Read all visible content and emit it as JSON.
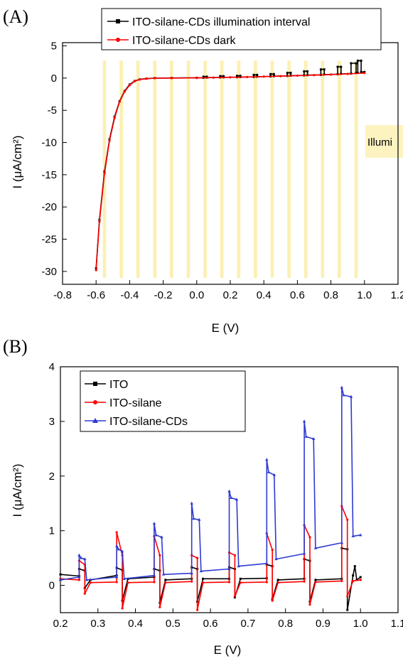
{
  "panels": {
    "a": {
      "tag": "(A)"
    },
    "b": {
      "tag": "(B)"
    }
  },
  "chart_data": [
    {
      "type": "line",
      "xlabel": "E (V)",
      "ylabel": "I (μA/cm²)",
      "xlim": [
        -0.8,
        1.2
      ],
      "ylim": [
        -32,
        5.5
      ],
      "xticks": [
        -0.8,
        -0.6,
        -0.4,
        -0.2,
        0.0,
        0.2,
        0.4,
        0.6,
        0.8,
        1.0,
        1.2
      ],
      "xtick_labels": [
        "-0.8",
        "-0.6",
        "-0.4",
        "-0.2",
        "0.0",
        "0.2",
        "0.4",
        "0.6",
        "0.8",
        "1.0",
        "1.2"
      ],
      "yticks": [
        5,
        0,
        -5,
        -10,
        -15,
        -20,
        -25,
        -30
      ],
      "ytick_labels": [
        "5",
        "0",
        "-5",
        "-10",
        "-15",
        "-20",
        "-25",
        "-30"
      ],
      "grid": false,
      "legend_position": "top",
      "annotation": "Illumi",
      "illumination_intervals": [
        [
          -0.56,
          -0.54
        ],
        [
          -0.46,
          -0.44
        ],
        [
          -0.36,
          -0.34
        ],
        [
          -0.26,
          -0.24
        ],
        [
          -0.16,
          -0.14
        ],
        [
          -0.06,
          -0.04
        ],
        [
          0.04,
          0.06
        ],
        [
          0.14,
          0.16
        ],
        [
          0.24,
          0.26
        ],
        [
          0.34,
          0.36
        ],
        [
          0.44,
          0.46
        ],
        [
          0.54,
          0.56
        ],
        [
          0.64,
          0.66
        ],
        [
          0.74,
          0.76
        ],
        [
          0.84,
          0.86
        ],
        [
          0.94,
          0.96
        ]
      ],
      "series": [
        {
          "name": "ITO-silane-CDs illumination interval",
          "color": "#000000",
          "marker": "square",
          "points": [
            [
              -0.6,
              -29.5
            ],
            [
              -0.58,
              -22.0
            ],
            [
              -0.55,
              -14.5
            ],
            [
              -0.52,
              -9.5
            ],
            [
              -0.49,
              -6.0
            ],
            [
              -0.46,
              -3.6
            ],
            [
              -0.43,
              -2.0
            ],
            [
              -0.4,
              -1.0
            ],
            [
              -0.37,
              -0.45
            ],
            [
              -0.34,
              -0.2
            ],
            [
              -0.3,
              -0.08
            ],
            [
              -0.25,
              0.0
            ],
            [
              -0.15,
              0.02
            ],
            [
              0.0,
              0.05
            ],
            [
              0.04,
              0.05
            ],
            [
              0.04,
              0.22
            ],
            [
              0.06,
              0.22
            ],
            [
              0.06,
              0.08
            ],
            [
              0.14,
              0.1
            ],
            [
              0.14,
              0.3
            ],
            [
              0.16,
              0.3
            ],
            [
              0.16,
              0.12
            ],
            [
              0.24,
              0.14
            ],
            [
              0.24,
              0.35
            ],
            [
              0.26,
              0.35
            ],
            [
              0.26,
              0.16
            ],
            [
              0.34,
              0.18
            ],
            [
              0.34,
              0.5
            ],
            [
              0.36,
              0.5
            ],
            [
              0.36,
              0.22
            ],
            [
              0.44,
              0.26
            ],
            [
              0.44,
              0.62
            ],
            [
              0.46,
              0.62
            ],
            [
              0.46,
              0.3
            ],
            [
              0.54,
              0.34
            ],
            [
              0.54,
              0.82
            ],
            [
              0.56,
              0.82
            ],
            [
              0.56,
              0.38
            ],
            [
              0.64,
              0.42
            ],
            [
              0.64,
              1.05
            ],
            [
              0.66,
              1.05
            ],
            [
              0.66,
              0.46
            ],
            [
              0.74,
              0.5
            ],
            [
              0.74,
              1.35
            ],
            [
              0.76,
              1.35
            ],
            [
              0.76,
              0.55
            ],
            [
              0.84,
              0.6
            ],
            [
              0.84,
              1.75
            ],
            [
              0.86,
              1.75
            ],
            [
              0.86,
              0.65
            ],
            [
              0.92,
              0.7
            ],
            [
              0.92,
              2.3
            ],
            [
              0.95,
              2.3
            ],
            [
              0.95,
              0.8
            ],
            [
              0.96,
              0.8
            ],
            [
              0.96,
              2.7
            ],
            [
              0.98,
              2.7
            ],
            [
              0.98,
              0.95
            ],
            [
              1.0,
              0.95
            ]
          ]
        },
        {
          "name": "ITO-silane-CDs dark",
          "color": "#ff0000",
          "marker": "circle",
          "points": [
            [
              -0.6,
              -29.8
            ],
            [
              -0.58,
              -22.3
            ],
            [
              -0.55,
              -14.8
            ],
            [
              -0.52,
              -9.7
            ],
            [
              -0.49,
              -6.2
            ],
            [
              -0.46,
              -3.7
            ],
            [
              -0.43,
              -2.1
            ],
            [
              -0.4,
              -1.1
            ],
            [
              -0.37,
              -0.5
            ],
            [
              -0.34,
              -0.22
            ],
            [
              -0.3,
              -0.1
            ],
            [
              -0.25,
              -0.02
            ],
            [
              -0.15,
              0.0
            ],
            [
              0.0,
              0.03
            ],
            [
              0.1,
              0.07
            ],
            [
              0.2,
              0.12
            ],
            [
              0.3,
              0.17
            ],
            [
              0.4,
              0.23
            ],
            [
              0.5,
              0.3
            ],
            [
              0.6,
              0.38
            ],
            [
              0.7,
              0.46
            ],
            [
              0.8,
              0.55
            ],
            [
              0.9,
              0.65
            ],
            [
              1.0,
              0.78
            ]
          ]
        }
      ]
    },
    {
      "type": "line",
      "xlabel": "E (V)",
      "ylabel": "I (μA/cm²)",
      "xlim": [
        0.2,
        1.1
      ],
      "ylim": [
        -0.5,
        4.0
      ],
      "xticks": [
        0.2,
        0.3,
        0.4,
        0.5,
        0.6,
        0.7,
        0.8,
        0.9,
        1.0,
        1.1
      ],
      "xtick_labels": [
        "0.2",
        "0.3",
        "0.4",
        "0.5",
        "0.6",
        "0.7",
        "0.8",
        "0.9",
        "1.0",
        "1.1"
      ],
      "yticks": [
        0,
        1,
        2,
        3,
        4
      ],
      "ytick_labels": [
        "0",
        "1",
        "2",
        "3",
        "4"
      ],
      "grid": false,
      "legend_position": "top-left",
      "series": [
        {
          "name": "ITO",
          "color": "#000000",
          "marker": "square",
          "points": [
            [
              0.2,
              0.2
            ],
            [
              0.25,
              0.17
            ],
            [
              0.25,
              0.3
            ],
            [
              0.265,
              0.27
            ],
            [
              0.265,
              -0.05
            ],
            [
              0.28,
              0.1
            ],
            [
              0.35,
              0.18
            ],
            [
              0.35,
              0.32
            ],
            [
              0.365,
              0.28
            ],
            [
              0.365,
              -0.28
            ],
            [
              0.38,
              0.12
            ],
            [
              0.45,
              0.15
            ],
            [
              0.45,
              0.3
            ],
            [
              0.465,
              0.27
            ],
            [
              0.465,
              -0.32
            ],
            [
              0.48,
              0.1
            ],
            [
              0.55,
              0.12
            ],
            [
              0.55,
              0.33
            ],
            [
              0.565,
              0.3
            ],
            [
              0.565,
              -0.3
            ],
            [
              0.58,
              0.12
            ],
            [
              0.65,
              0.12
            ],
            [
              0.65,
              0.33
            ],
            [
              0.665,
              0.3
            ],
            [
              0.665,
              -0.22
            ],
            [
              0.68,
              0.12
            ],
            [
              0.75,
              0.13
            ],
            [
              0.75,
              0.38
            ],
            [
              0.765,
              0.35
            ],
            [
              0.765,
              -0.25
            ],
            [
              0.78,
              0.1
            ],
            [
              0.85,
              0.12
            ],
            [
              0.85,
              0.48
            ],
            [
              0.865,
              0.45
            ],
            [
              0.865,
              -0.3
            ],
            [
              0.88,
              0.1
            ],
            [
              0.95,
              0.12
            ],
            [
              0.95,
              0.68
            ],
            [
              0.965,
              0.66
            ],
            [
              0.965,
              -0.45
            ],
            [
              0.98,
              0.18
            ],
            [
              0.985,
              0.35
            ],
            [
              0.99,
              0.1
            ],
            [
              1.0,
              0.15
            ]
          ]
        },
        {
          "name": "ITO-silane",
          "color": "#ff0000",
          "marker": "circle",
          "points": [
            [
              0.2,
              0.12
            ],
            [
              0.25,
              0.1
            ],
            [
              0.25,
              0.45
            ],
            [
              0.265,
              0.38
            ],
            [
              0.265,
              -0.15
            ],
            [
              0.28,
              0.05
            ],
            [
              0.35,
              0.06
            ],
            [
              0.35,
              0.97
            ],
            [
              0.365,
              0.55
            ],
            [
              0.365,
              -0.42
            ],
            [
              0.38,
              0.05
            ],
            [
              0.45,
              0.06
            ],
            [
              0.45,
              0.9
            ],
            [
              0.465,
              0.55
            ],
            [
              0.465,
              -0.4
            ],
            [
              0.48,
              0.05
            ],
            [
              0.55,
              0.07
            ],
            [
              0.55,
              0.55
            ],
            [
              0.565,
              0.5
            ],
            [
              0.565,
              -0.45
            ],
            [
              0.58,
              0.05
            ],
            [
              0.65,
              0.06
            ],
            [
              0.65,
              0.6
            ],
            [
              0.665,
              0.55
            ],
            [
              0.665,
              -0.2
            ],
            [
              0.68,
              0.05
            ],
            [
              0.75,
              0.06
            ],
            [
              0.75,
              0.95
            ],
            [
              0.765,
              0.65
            ],
            [
              0.765,
              -0.28
            ],
            [
              0.78,
              0.05
            ],
            [
              0.85,
              0.07
            ],
            [
              0.85,
              1.1
            ],
            [
              0.865,
              0.88
            ],
            [
              0.865,
              -0.35
            ],
            [
              0.88,
              0.06
            ],
            [
              0.95,
              0.08
            ],
            [
              0.95,
              1.45
            ],
            [
              0.965,
              1.2
            ],
            [
              0.965,
              -0.2
            ],
            [
              0.98,
              0.08
            ],
            [
              1.0,
              0.1
            ]
          ]
        },
        {
          "name": "ITO-silane-CDs",
          "color": "#2e3bd1",
          "marker": "triangle",
          "points": [
            [
              0.2,
              0.1
            ],
            [
              0.25,
              0.15
            ],
            [
              0.25,
              0.55
            ],
            [
              0.255,
              0.5
            ],
            [
              0.265,
              0.48
            ],
            [
              0.27,
              0.1
            ],
            [
              0.35,
              0.15
            ],
            [
              0.35,
              0.72
            ],
            [
              0.355,
              0.66
            ],
            [
              0.365,
              0.62
            ],
            [
              0.37,
              0.12
            ],
            [
              0.45,
              0.18
            ],
            [
              0.45,
              1.13
            ],
            [
              0.455,
              0.92
            ],
            [
              0.47,
              0.88
            ],
            [
              0.475,
              0.2
            ],
            [
              0.55,
              0.22
            ],
            [
              0.55,
              1.5
            ],
            [
              0.555,
              1.22
            ],
            [
              0.57,
              1.2
            ],
            [
              0.575,
              0.26
            ],
            [
              0.65,
              0.3
            ],
            [
              0.65,
              1.72
            ],
            [
              0.655,
              1.6
            ],
            [
              0.67,
              1.57
            ],
            [
              0.675,
              0.35
            ],
            [
              0.75,
              0.4
            ],
            [
              0.75,
              2.3
            ],
            [
              0.755,
              2.07
            ],
            [
              0.77,
              2.02
            ],
            [
              0.775,
              0.48
            ],
            [
              0.85,
              0.58
            ],
            [
              0.85,
              3.0
            ],
            [
              0.855,
              2.72
            ],
            [
              0.875,
              2.68
            ],
            [
              0.88,
              0.68
            ],
            [
              0.95,
              0.78
            ],
            [
              0.95,
              3.62
            ],
            [
              0.955,
              3.48
            ],
            [
              0.975,
              3.45
            ],
            [
              0.98,
              0.9
            ],
            [
              1.0,
              0.92
            ]
          ]
        }
      ]
    }
  ]
}
